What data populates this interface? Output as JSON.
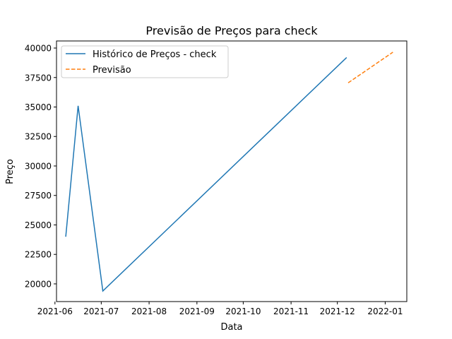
{
  "chart_data": {
    "type": "line",
    "title": "Previsão de Preços para check",
    "xlabel": "Data",
    "ylabel": "Preço",
    "xlim": [
      "2021-06-02",
      "2022-01-15"
    ],
    "ylim": [
      18500,
      40600
    ],
    "x_ticks": [
      "2021-06",
      "2021-07",
      "2021-08",
      "2021-09",
      "2021-10",
      "2021-11",
      "2021-12",
      "2022-01"
    ],
    "y_ticks": [
      20000,
      22500,
      25000,
      27500,
      30000,
      32500,
      35000,
      37500,
      40000
    ],
    "grid": false,
    "legend_position": "top-left",
    "series": [
      {
        "name": "Histórico de Preços - check",
        "color": "#1f77b4",
        "style": "solid",
        "points": [
          {
            "x": "2021-06-08",
            "y": 24000
          },
          {
            "x": "2021-06-16",
            "y": 35100
          },
          {
            "x": "2021-07-02",
            "y": 19400
          },
          {
            "x": "2021-12-07",
            "y": 39200
          }
        ]
      },
      {
        "name": "Previsão",
        "color": "#ff7f0e",
        "style": "dashed",
        "points": [
          {
            "x": "2021-12-08",
            "y": 37050
          },
          {
            "x": "2022-01-06",
            "y": 39650
          }
        ]
      }
    ]
  }
}
